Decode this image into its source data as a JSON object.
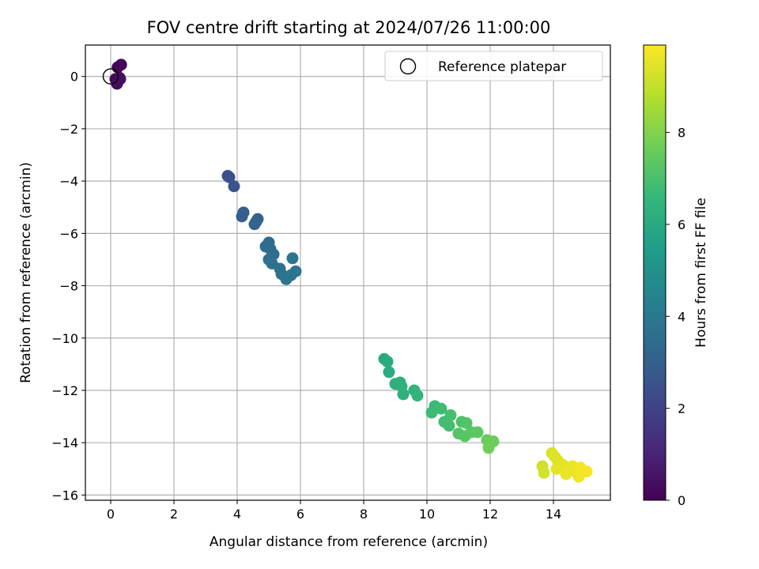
{
  "chart_data": {
    "type": "scatter",
    "title": "FOV centre drift starting at 2024/07/26 11:00:00",
    "xlabel": "Angular distance from reference (arcmin)",
    "ylabel": "Rotation from reference (arcmin)",
    "xlim": [
      -0.8,
      15.8
    ],
    "ylim": [
      -16.2,
      1.2
    ],
    "xticks": [
      0,
      2,
      4,
      6,
      8,
      10,
      12,
      14
    ],
    "yticks": [
      0,
      -2,
      -4,
      -6,
      -8,
      -10,
      -12,
      -14,
      -16
    ],
    "grid": true,
    "legend": {
      "label": "Reference platepar",
      "placement": "top-right"
    },
    "reference_point": {
      "x": 0,
      "y": 0
    },
    "colorbar": {
      "label": "Hours from first FF file",
      "colormap": "viridis",
      "range": [
        0,
        9.9
      ],
      "ticks": [
        0,
        2,
        4,
        6,
        8
      ],
      "colors": [
        "#440154",
        "#482878",
        "#3e4989",
        "#31688e",
        "#26828e",
        "#1f9e89",
        "#35b779",
        "#6ece58",
        "#b5de2b",
        "#fde725"
      ]
    },
    "points": [
      {
        "x": 0.22,
        "y": 0.35,
        "t": 0.1
      },
      {
        "x": 0.33,
        "y": 0.45,
        "t": 0.15
      },
      {
        "x": 0.15,
        "y": -0.1,
        "t": 0.2
      },
      {
        "x": 0.28,
        "y": -0.05,
        "t": 0.25
      },
      {
        "x": 0.2,
        "y": -0.28,
        "t": 0.3
      },
      {
        "x": 0.3,
        "y": -0.1,
        "t": 0.35
      },
      {
        "x": 3.7,
        "y": -3.8,
        "t": 2.4
      },
      {
        "x": 3.75,
        "y": -3.85,
        "t": 2.45
      },
      {
        "x": 3.9,
        "y": -4.2,
        "t": 2.6
      },
      {
        "x": 4.2,
        "y": -5.2,
        "t": 3.0
      },
      {
        "x": 4.15,
        "y": -5.35,
        "t": 3.0
      },
      {
        "x": 4.65,
        "y": -5.45,
        "t": 3.1
      },
      {
        "x": 4.55,
        "y": -5.65,
        "t": 3.15
      },
      {
        "x": 4.6,
        "y": -5.55,
        "t": 3.15
      },
      {
        "x": 5.0,
        "y": -6.35,
        "t": 3.4
      },
      {
        "x": 4.9,
        "y": -6.5,
        "t": 3.45
      },
      {
        "x": 5.05,
        "y": -6.6,
        "t": 3.5
      },
      {
        "x": 5.15,
        "y": -6.8,
        "t": 3.55
      },
      {
        "x": 5.0,
        "y": -7.0,
        "t": 3.6
      },
      {
        "x": 5.1,
        "y": -7.15,
        "t": 3.65
      },
      {
        "x": 5.35,
        "y": -7.35,
        "t": 3.7
      },
      {
        "x": 5.4,
        "y": -7.55,
        "t": 3.75
      },
      {
        "x": 5.55,
        "y": -7.75,
        "t": 3.8
      },
      {
        "x": 5.7,
        "y": -7.6,
        "t": 3.85
      },
      {
        "x": 5.85,
        "y": -7.45,
        "t": 3.9
      },
      {
        "x": 5.75,
        "y": -6.95,
        "t": 3.9
      },
      {
        "x": 8.65,
        "y": -10.8,
        "t": 6.0
      },
      {
        "x": 8.75,
        "y": -10.9,
        "t": 6.05
      },
      {
        "x": 8.8,
        "y": -11.3,
        "t": 6.1
      },
      {
        "x": 9.0,
        "y": -11.75,
        "t": 6.2
      },
      {
        "x": 9.15,
        "y": -11.7,
        "t": 6.25
      },
      {
        "x": 9.2,
        "y": -11.85,
        "t": 6.3
      },
      {
        "x": 9.25,
        "y": -12.15,
        "t": 6.3
      },
      {
        "x": 9.6,
        "y": -12.0,
        "t": 6.4
      },
      {
        "x": 9.7,
        "y": -12.2,
        "t": 6.45
      },
      {
        "x": 10.25,
        "y": -12.6,
        "t": 6.7
      },
      {
        "x": 10.15,
        "y": -12.85,
        "t": 6.75
      },
      {
        "x": 10.45,
        "y": -12.7,
        "t": 6.8
      },
      {
        "x": 10.55,
        "y": -13.2,
        "t": 6.85
      },
      {
        "x": 10.7,
        "y": -13.35,
        "t": 6.9
      },
      {
        "x": 10.75,
        "y": -12.95,
        "t": 6.95
      },
      {
        "x": 11.1,
        "y": -13.2,
        "t": 7.1
      },
      {
        "x": 11.25,
        "y": -13.25,
        "t": 7.15
      },
      {
        "x": 11.0,
        "y": -13.65,
        "t": 7.2
      },
      {
        "x": 11.2,
        "y": -13.75,
        "t": 7.25
      },
      {
        "x": 11.4,
        "y": -13.6,
        "t": 7.3
      },
      {
        "x": 11.6,
        "y": -13.6,
        "t": 7.35
      },
      {
        "x": 11.9,
        "y": -13.9,
        "t": 7.6
      },
      {
        "x": 12.1,
        "y": -13.95,
        "t": 7.65
      },
      {
        "x": 11.95,
        "y": -14.2,
        "t": 7.7
      },
      {
        "x": 13.65,
        "y": -14.9,
        "t": 9.2
      },
      {
        "x": 13.7,
        "y": -15.15,
        "t": 9.25
      },
      {
        "x": 13.95,
        "y": -14.4,
        "t": 9.35
      },
      {
        "x": 14.05,
        "y": -14.55,
        "t": 9.4
      },
      {
        "x": 14.15,
        "y": -14.7,
        "t": 9.45
      },
      {
        "x": 14.3,
        "y": -14.85,
        "t": 9.5
      },
      {
        "x": 14.1,
        "y": -15.0,
        "t": 9.5
      },
      {
        "x": 14.5,
        "y": -15.05,
        "t": 9.55
      },
      {
        "x": 14.6,
        "y": -14.9,
        "t": 9.6
      },
      {
        "x": 14.7,
        "y": -15.1,
        "t": 9.65
      },
      {
        "x": 14.8,
        "y": -15.3,
        "t": 9.7
      },
      {
        "x": 14.85,
        "y": -14.95,
        "t": 9.75
      },
      {
        "x": 15.05,
        "y": -15.1,
        "t": 9.8
      },
      {
        "x": 14.4,
        "y": -15.2,
        "t": 9.6
      }
    ]
  }
}
